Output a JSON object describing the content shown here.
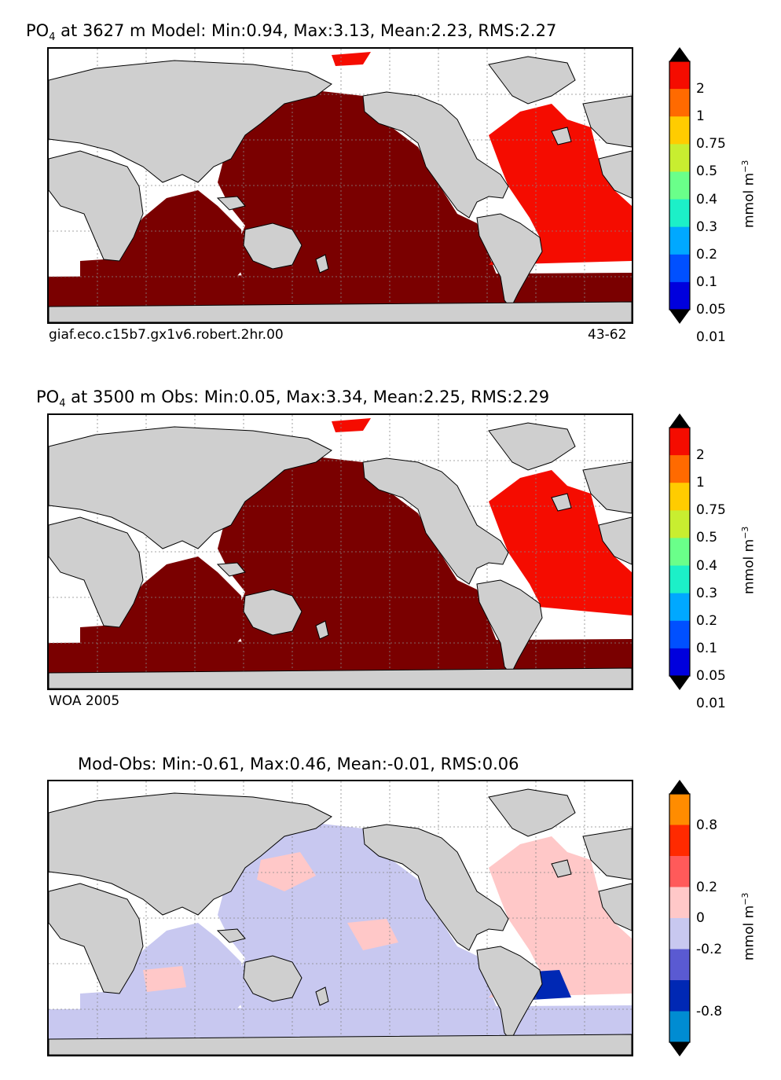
{
  "panels": [
    {
      "title_prefix": "PO",
      "title_sub": "4",
      "title_rest": " at 3627 m Model: Min:0.94, Max:3.13, Mean:2.23, RMS:2.27",
      "note_left": "giaf.eco.c15b7.gx1v6.robert.2hr.00",
      "note_right": "43-62",
      "cb_levels": [
        "2",
        "1",
        "0.75",
        "0.5",
        "0.4",
        "0.3",
        "0.2",
        "0.1",
        "0.05",
        "0.01"
      ],
      "cb_colors": [
        "#7a0000",
        "#f50c00",
        "#ff6a00",
        "#ffcc00",
        "#c8ee30",
        "#6aff8a",
        "#1cf0c8",
        "#00a8ff",
        "#0050ff",
        "#0000dd",
        "#00007a"
      ],
      "unit": "mmol m",
      "unit_sup": "−3"
    },
    {
      "title_prefix": "PO",
      "title_sub": "4",
      "title_rest": " at 3500 m Obs: Min:0.05, Max:3.34, Mean:2.25, RMS:2.29",
      "note_left": "WOA 2005",
      "note_right": "",
      "cb_levels": [
        "2",
        "1",
        "0.75",
        "0.5",
        "0.4",
        "0.3",
        "0.2",
        "0.1",
        "0.05",
        "0.01"
      ],
      "cb_colors": [
        "#7a0000",
        "#f50c00",
        "#ff6a00",
        "#ffcc00",
        "#c8ee30",
        "#6aff8a",
        "#1cf0c8",
        "#00a8ff",
        "#0050ff",
        "#0000dd",
        "#00007a"
      ],
      "unit": "mmol m",
      "unit_sup": "−3"
    },
    {
      "title_prefix": "Mod-Obs: Min:-0.61, Max:0.46, Mean:-0.01, RMS:0.06",
      "title_sub": "",
      "title_rest": "",
      "note_left": "",
      "note_right": "",
      "cb_levels": [
        "0.8",
        "0.2",
        "0",
        "-0.2",
        "-0.8"
      ],
      "cb_colors": [
        "#ffff00",
        "#ff8c00",
        "#ff2a00",
        "#ff5a5a",
        "#ffc8c8",
        "#c8c8f0",
        "#5a5ad2",
        "#0028b4",
        "#008cd2",
        "#00ffff"
      ],
      "unit": "mmol m",
      "unit_sup": "−3"
    }
  ],
  "colors": {
    "land": "#cfcfcf",
    "ocean_nodata": "#ffffff",
    "model_deep": "#7a0000",
    "model_atlantic": "#f50c00",
    "diff_pos_light": "#ffc8c8",
    "diff_neg_light": "#c8c8f0",
    "diff_neg_strong": "#0028b4"
  }
}
